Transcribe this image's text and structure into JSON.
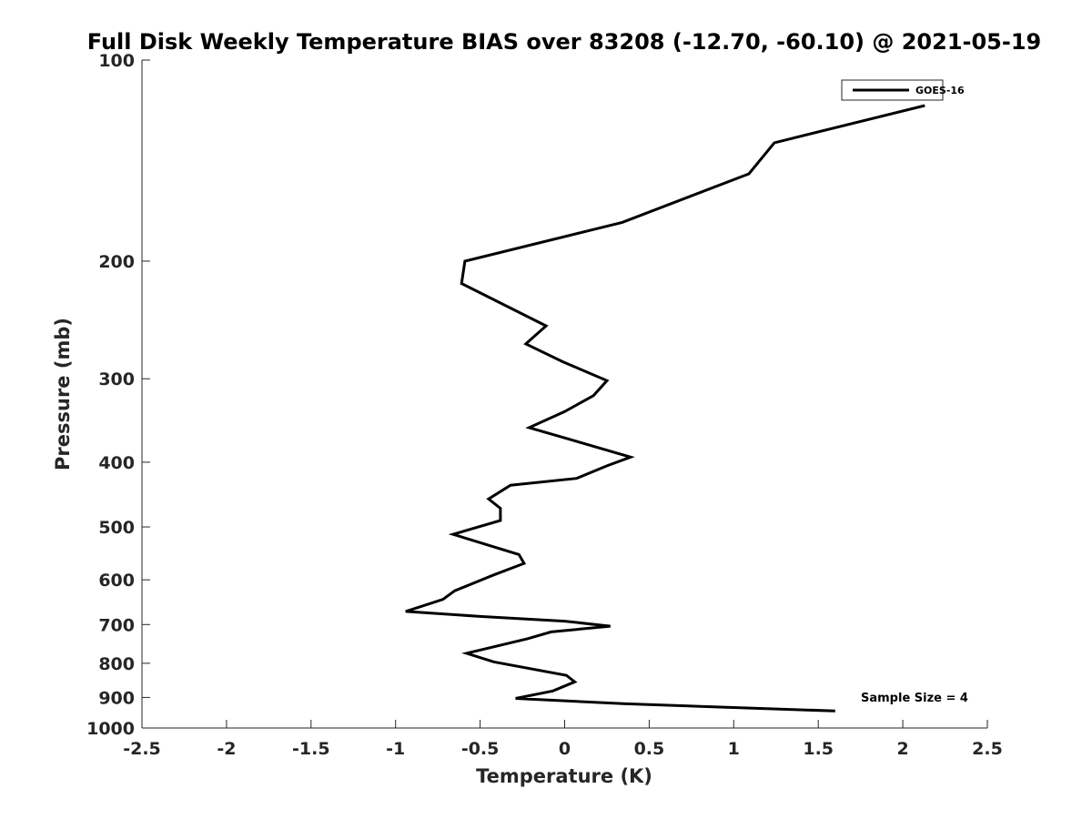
{
  "chart_data": {
    "type": "line",
    "title": "Full Disk Weekly Temperature BIAS over 83208 (-12.70, -60.10) @ 2021-05-19",
    "xlabel": "Temperature (K)",
    "ylabel": "Pressure (mb)",
    "xlim": [
      -2.5,
      2.5
    ],
    "ylim": [
      1000,
      100
    ],
    "yscale": "log",
    "y_reversed": true,
    "grid": false,
    "legend_position": "top-right",
    "x_ticks": [
      -2.5,
      -2,
      -1.5,
      -1,
      -0.5,
      0,
      0.5,
      1,
      1.5,
      2,
      2.5
    ],
    "x_tick_labels": [
      "-2.5",
      "-2",
      "-1.5",
      "-1",
      "-0.5",
      "0",
      "0.5",
      "1",
      "1.5",
      "2",
      "2.5"
    ],
    "y_ticks": [
      100,
      200,
      300,
      400,
      500,
      600,
      700,
      800,
      900,
      1000
    ],
    "y_tick_labels": [
      "100",
      "200",
      "300",
      "400",
      "500",
      "600",
      "700",
      "800",
      "900",
      "1000"
    ],
    "series": [
      {
        "name": "GOES-16",
        "color": "#000000",
        "points": [
          {
            "x": 2.13,
            "p": 117
          },
          {
            "x": 1.24,
            "p": 133
          },
          {
            "x": 1.09,
            "p": 148
          },
          {
            "x": 0.34,
            "p": 175
          },
          {
            "x": -0.59,
            "p": 200
          },
          {
            "x": -0.61,
            "p": 216
          },
          {
            "x": -0.11,
            "p": 250
          },
          {
            "x": -0.23,
            "p": 266
          },
          {
            "x": -0.01,
            "p": 283
          },
          {
            "x": 0.25,
            "p": 302
          },
          {
            "x": 0.17,
            "p": 318
          },
          {
            "x": 0.0,
            "p": 336
          },
          {
            "x": -0.21,
            "p": 355
          },
          {
            "x": 0.39,
            "p": 393
          },
          {
            "x": 0.25,
            "p": 405
          },
          {
            "x": 0.07,
            "p": 423
          },
          {
            "x": -0.32,
            "p": 433
          },
          {
            "x": -0.45,
            "p": 454
          },
          {
            "x": -0.38,
            "p": 469
          },
          {
            "x": -0.38,
            "p": 489
          },
          {
            "x": -0.66,
            "p": 513
          },
          {
            "x": -0.27,
            "p": 550
          },
          {
            "x": -0.24,
            "p": 567
          },
          {
            "x": -0.42,
            "p": 590
          },
          {
            "x": -0.65,
            "p": 623
          },
          {
            "x": -0.72,
            "p": 642
          },
          {
            "x": -0.94,
            "p": 669
          },
          {
            "x": -0.49,
            "p": 681
          },
          {
            "x": 0.0,
            "p": 692
          },
          {
            "x": 0.27,
            "p": 704
          },
          {
            "x": -0.08,
            "p": 718
          },
          {
            "x": -0.22,
            "p": 735
          },
          {
            "x": -0.58,
            "p": 773
          },
          {
            "x": -0.42,
            "p": 796
          },
          {
            "x": 0.01,
            "p": 834
          },
          {
            "x": 0.06,
            "p": 853
          },
          {
            "x": -0.07,
            "p": 880
          },
          {
            "x": -0.29,
            "p": 903
          },
          {
            "x": 0.36,
            "p": 920
          },
          {
            "x": 1.6,
            "p": 943
          }
        ]
      }
    ],
    "annotations": [
      {
        "text": "Sample Size = 4",
        "position": "bottom-right"
      }
    ]
  }
}
